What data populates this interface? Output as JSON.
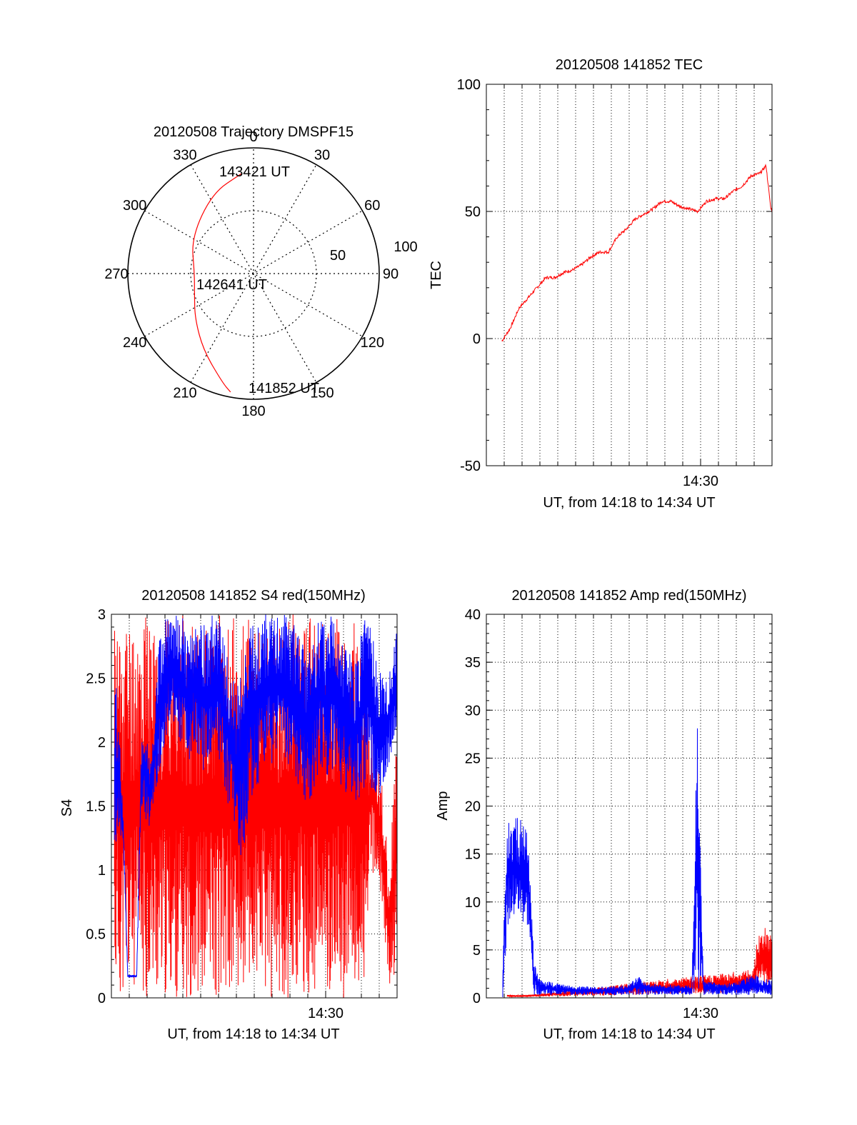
{
  "colors": {
    "red": "#ff0000",
    "blue": "#0000ff",
    "axis": "#000000",
    "grid": "#000000"
  },
  "chart_data": [
    {
      "id": "polar",
      "type": "scatter",
      "title": "20120508 Trajectory DMSPF15",
      "projection": "polar",
      "r_max": 100,
      "r_ticks": [
        50,
        100
      ],
      "azimuth_ticks": [
        0,
        30,
        60,
        90,
        120,
        150,
        180,
        210,
        240,
        270,
        300,
        330
      ],
      "grid": true,
      "annotations": [
        "143421 UT",
        "142641 UT",
        "141852 UT"
      ],
      "series": [
        {
          "color": "red",
          "azimuth_deg": [
            353,
            333,
            300,
            270,
            250,
            232,
            213,
            196,
            191
          ],
          "radius": [
            80,
            72,
            57,
            47,
            50,
            59,
            73,
            90,
            96
          ]
        }
      ]
    },
    {
      "id": "tec",
      "type": "line",
      "title": "20120508 141852 TEC",
      "xlabel": "UT, from 14:18 to 14:34 UT",
      "ylabel": "TEC",
      "xlim": [
        "14:18:00",
        "14:34:00"
      ],
      "ylim": [
        -50,
        100
      ],
      "yticks": [
        -50,
        0,
        50,
        100
      ],
      "xtick_labels": [
        "14:30"
      ],
      "grid": true,
      "series": [
        {
          "color": "red",
          "x": [
            "14:18:52",
            "14:19:20",
            "14:19:50",
            "14:20:20",
            "14:20:50",
            "14:21:20",
            "14:21:50",
            "14:22:20",
            "14:22:50",
            "14:23:20",
            "14:23:50",
            "14:24:20",
            "14:24:50",
            "14:25:20",
            "14:25:50",
            "14:26:20",
            "14:26:50",
            "14:27:20",
            "14:27:50",
            "14:28:20",
            "14:28:50",
            "14:29:20",
            "14:29:50",
            "14:30:20",
            "14:30:50",
            "14:31:20",
            "14:31:50",
            "14:32:20",
            "14:32:50",
            "14:33:20",
            "14:33:40",
            "14:33:55",
            "14:34:00"
          ],
          "y": [
            -1,
            4,
            12,
            16,
            20,
            24,
            24,
            26,
            27,
            29,
            32,
            34,
            34,
            40,
            43,
            47,
            49,
            51,
            54,
            54,
            52,
            51,
            50,
            54,
            55,
            55,
            58,
            60,
            64,
            65,
            68,
            52,
            50
          ]
        }
      ]
    },
    {
      "id": "s4",
      "type": "line",
      "title": "20120508 141852 S4 red(150MHz)",
      "xlabel": "UT, from 14:18 to 14:34 UT",
      "ylabel": "S4",
      "xlim": [
        "14:18:00",
        "14:34:00"
      ],
      "ylim": [
        0,
        3
      ],
      "yticks": [
        0,
        0.5,
        1,
        1.5,
        2,
        2.5,
        3
      ],
      "xtick_labels": [
        "14:30"
      ],
      "grid": true,
      "series": [
        {
          "color": "red",
          "x": [
            "14:18:10",
            "14:18:45",
            "14:19:10",
            "14:19:35",
            "14:20:05",
            "14:20:35",
            "14:21:05",
            "14:21:35",
            "14:22:05",
            "14:22:35",
            "14:23:05",
            "14:23:35",
            "14:24:05",
            "14:24:35",
            "14:25:05",
            "14:25:35",
            "14:26:05",
            "14:26:35",
            "14:27:05",
            "14:27:35",
            "14:28:05",
            "14:28:35",
            "14:29:05",
            "14:29:35",
            "14:30:05",
            "14:30:35",
            "14:31:05",
            "14:31:35",
            "14:32:05",
            "14:32:35",
            "14:33:05",
            "14:33:20",
            "14:33:35",
            "14:33:50",
            "14:34:00"
          ],
          "y_low": [
            0,
            0,
            0,
            0,
            0,
            0,
            0,
            0,
            0,
            0,
            0,
            0,
            0,
            0,
            0,
            0,
            0,
            0,
            0,
            0,
            0,
            0,
            0,
            0,
            0,
            0,
            0,
            0,
            0,
            1.0,
            0.8,
            0.3,
            0.1,
            0.1,
            0.8
          ],
          "y_high": [
            3,
            3,
            3,
            3,
            3,
            3,
            3,
            3,
            3,
            3,
            3,
            3,
            3,
            3,
            3,
            3,
            3,
            3,
            3,
            3,
            3,
            3,
            3,
            3,
            3,
            3,
            3,
            3,
            2.6,
            2.2,
            1.8,
            1.4,
            0.9,
            1.8,
            2.0
          ]
        },
        {
          "color": "blue",
          "x": [
            "14:18:10",
            "14:18:25",
            "14:18:40",
            "14:18:55",
            "14:19:10",
            "14:19:25",
            "14:19:40",
            "14:19:55",
            "14:20:10",
            "14:20:25",
            "14:20:40",
            "14:21:00",
            "14:21:20",
            "14:21:40",
            "14:22:00",
            "14:22:20",
            "14:22:40",
            "14:23:00",
            "14:23:20",
            "14:23:40",
            "14:24:00",
            "14:24:20",
            "14:24:40",
            "14:25:00",
            "14:25:20",
            "14:25:40",
            "14:26:00",
            "14:26:20",
            "14:26:40",
            "14:27:00",
            "14:27:20",
            "14:27:40",
            "14:28:00",
            "14:28:20",
            "14:28:40",
            "14:29:00",
            "14:29:20",
            "14:29:40",
            "14:30:00",
            "14:30:20",
            "14:30:40",
            "14:31:00",
            "14:31:20",
            "14:31:40",
            "14:32:00",
            "14:32:20",
            "14:32:40",
            "14:33:00",
            "14:33:20",
            "14:33:40",
            "14:34:00"
          ],
          "y_low": [
            1.0,
            1.3,
            1.2,
            0.16,
            0.16,
            0.16,
            1.5,
            1.4,
            1.3,
            1.6,
            1.7,
            2.0,
            2.2,
            2.1,
            1.9,
            1.8,
            2.0,
            1.8,
            1.7,
            1.8,
            1.9,
            1.6,
            1.4,
            1.2,
            1.0,
            1.4,
            1.6,
            1.7,
            1.9,
            1.8,
            2.0,
            1.9,
            1.8,
            1.7,
            1.6,
            1.5,
            1.6,
            1.8,
            1.7,
            1.8,
            1.7,
            1.6,
            1.6,
            1.5,
            1.6,
            1.7,
            1.6,
            1.5,
            1.7,
            1.9,
            2.1
          ],
          "y_high": [
            2.6,
            2.2,
            1.4,
            0.18,
            0.18,
            0.18,
            2.0,
            2.2,
            1.8,
            2.2,
            2.8,
            3.0,
            3.0,
            3.0,
            3.0,
            2.8,
            3.0,
            3.0,
            2.9,
            3.0,
            3.0,
            2.8,
            2.6,
            2.4,
            2.6,
            2.9,
            3.0,
            3.0,
            3.0,
            3.0,
            3.0,
            3.0,
            3.0,
            2.9,
            2.8,
            2.7,
            2.8,
            3.0,
            2.9,
            3.0,
            2.9,
            2.8,
            2.7,
            2.6,
            2.9,
            3.0,
            2.8,
            2.6,
            2.5,
            2.6,
            2.9
          ]
        }
      ]
    },
    {
      "id": "amp",
      "type": "line",
      "title": "20120508 141852 Amp red(150MHz)",
      "xlabel": "UT, from 14:18 to 14:34 UT",
      "ylabel": "Amp",
      "xlim": [
        "14:18:00",
        "14:34:00"
      ],
      "ylim": [
        0,
        40
      ],
      "yticks": [
        0,
        5,
        10,
        15,
        20,
        25,
        30,
        35,
        40
      ],
      "xtick_labels": [
        "14:30"
      ],
      "grid": true,
      "series": [
        {
          "color": "red",
          "x": [
            "14:19:10",
            "14:20:20",
            "14:32:55",
            "14:33:10",
            "14:33:30",
            "14:33:50",
            "14:34:00"
          ],
          "y_low": [
            0.1,
            0.1,
            0.5,
            1.0,
            1.5,
            1.2,
            1.0
          ],
          "y_high": [
            0.3,
            0.3,
            3.0,
            6.0,
            7.5,
            7.0,
            6.5
          ]
        },
        {
          "color": "blue",
          "x": [
            "14:18:55",
            "14:19:10",
            "14:19:40",
            "14:20:00",
            "14:20:20",
            "14:20:40",
            "14:21:00",
            "14:22:00",
            "14:23:00",
            "14:24:00",
            "14:25:00",
            "14:26:00",
            "14:26:30",
            "14:27:00",
            "14:28:00",
            "14:29:00",
            "14:29:30",
            "14:29:50",
            "14:30:10",
            "14:31:00",
            "14:32:00",
            "14:32:40",
            "14:33:00",
            "14:33:30",
            "14:34:00"
          ],
          "y_low": [
            0.0,
            7.0,
            8.0,
            7.5,
            7.0,
            0.3,
            0.3,
            0.3,
            0.3,
            0.3,
            0.3,
            0.3,
            0.3,
            0.3,
            0.3,
            0.3,
            0.3,
            0.3,
            0.3,
            0.3,
            0.3,
            0.3,
            0.3,
            0.3,
            0.3
          ],
          "y_high": [
            3.5,
            19.0,
            19.5,
            18.5,
            17.0,
            4.0,
            2.0,
            1.5,
            1.2,
            1.2,
            1.2,
            1.4,
            2.5,
            1.5,
            1.4,
            1.4,
            1.5,
            30.5,
            1.8,
            1.6,
            1.6,
            2.2,
            2.5,
            2.0,
            2.0
          ]
        }
      ]
    }
  ]
}
